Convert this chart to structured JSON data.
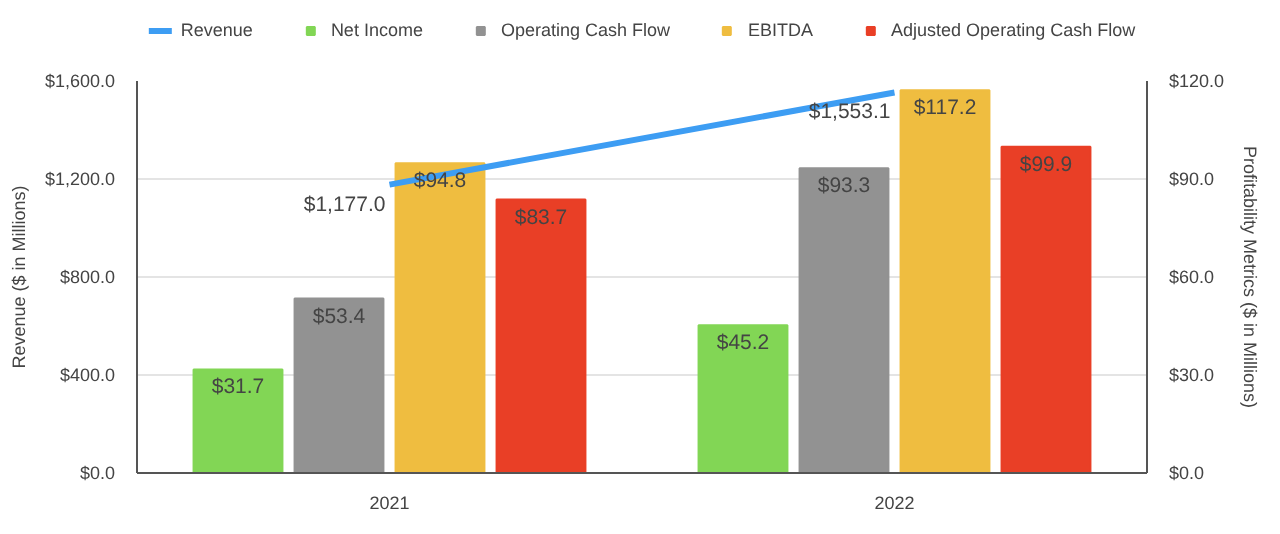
{
  "chart_data": {
    "type": "bar",
    "categories": [
      "2021",
      "2022"
    ],
    "ylabel": "Revenue ($ in Millions)",
    "y2label": "Profitability Metrics ($ in Millions)",
    "series": [
      {
        "name": "Revenue",
        "type": "line",
        "color": "#3d9df3",
        "values": [
          1177.0,
          1553.1
        ],
        "value_labels": [
          "$1,177.0",
          "$1,553.1"
        ]
      },
      {
        "name": "Net Income",
        "color": "#82d655",
        "values": [
          31.7,
          45.2
        ],
        "axis": "y2",
        "value_labels": [
          "$31.7",
          "$45.2"
        ]
      },
      {
        "name": "Operating Cash Flow",
        "color": "#929292",
        "values": [
          53.4,
          93.3
        ],
        "axis": "y2",
        "value_labels": [
          "$53.4",
          "$93.3"
        ]
      },
      {
        "name": "EBITDA",
        "color": "#efbd40",
        "values": [
          94.8,
          117.2
        ],
        "axis": "y2",
        "value_labels": [
          "$94.8",
          "$117.2"
        ]
      },
      {
        "name": "Adjusted Operating Cash Flow",
        "color": "#e93f26",
        "values": [
          83.7,
          99.9
        ],
        "axis": "y2",
        "value_labels": [
          "$83.7",
          "$99.9"
        ]
      }
    ],
    "ylim": [
      0,
      1600
    ],
    "yticks": [
      {
        "value": 0,
        "label": "$0.0"
      },
      {
        "value": 400,
        "label": "$400.0"
      },
      {
        "value": 800,
        "label": "$800.0"
      },
      {
        "value": 1200,
        "label": "$1,200.0"
      },
      {
        "value": 1600,
        "label": "$1,600.0"
      }
    ],
    "y2lim": [
      0,
      120
    ],
    "y2ticks": [
      {
        "value": 0,
        "label": "$0.0"
      },
      {
        "value": 30,
        "label": "$30.0"
      },
      {
        "value": 60,
        "label": "$60.0"
      },
      {
        "value": 90,
        "label": "$90.0"
      },
      {
        "value": 120,
        "label": "$120.0"
      }
    ],
    "grid": "y",
    "legend": "top"
  }
}
